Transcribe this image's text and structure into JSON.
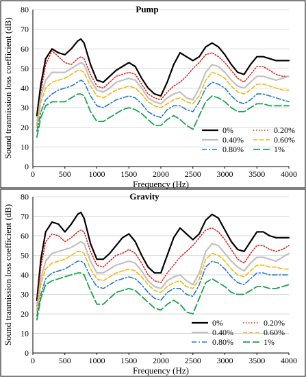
{
  "series_styles": [
    {
      "color": "#000000",
      "dash": "",
      "width": 2.2
    },
    {
      "color": "#e2231a",
      "dash": "1.5 2.5",
      "width": 1.6
    },
    {
      "color": "#c0c0c0",
      "dash": "",
      "width": 2.2
    },
    {
      "color": "#f2b705",
      "dash": "6 3",
      "width": 1.6
    },
    {
      "color": "#1f78c8",
      "dash": "7 3 2 3",
      "width": 1.6
    },
    {
      "color": "#16a34a",
      "dash": "10 4",
      "width": 1.8
    }
  ],
  "chart_data": [
    {
      "type": "line",
      "title": "Pump",
      "xlabel": "Frequency (Hz)",
      "ylabel": "Sound tranmission loss coefficient (dB)",
      "xlim": [
        0,
        4000
      ],
      "ylim": [
        0,
        80
      ],
      "xticks": [
        "0",
        "500",
        "1000",
        "1500",
        "2000",
        "2500",
        "3000",
        "3500",
        "4000"
      ],
      "yticks": [
        "0",
        "10",
        "20",
        "30",
        "40",
        "50",
        "60",
        "70",
        "80"
      ],
      "legend_position": "bottom-right",
      "x": [
        63,
        125,
        200,
        300,
        400,
        500,
        600,
        700,
        750,
        800,
        900,
        1000,
        1100,
        1200,
        1300,
        1400,
        1500,
        1600,
        1700,
        1800,
        1900,
        2000,
        2100,
        2200,
        2300,
        2400,
        2500,
        2600,
        2700,
        2800,
        2900,
        3000,
        3100,
        3200,
        3300,
        3400,
        3500,
        3600,
        3700,
        3800,
        3900,
        4000
      ],
      "series": [
        {
          "name": "0%",
          "values": [
            26,
            42,
            55,
            60,
            58,
            57,
            60,
            64,
            65,
            63,
            52,
            44,
            43,
            46,
            49,
            51,
            53,
            51,
            45,
            40,
            37,
            36,
            43,
            52,
            58,
            56,
            54,
            56,
            61,
            63,
            61,
            57,
            52,
            48,
            47,
            52,
            56,
            56,
            55,
            54,
            54,
            54
          ]
        },
        {
          "name": "0.20%",
          "values": [
            22,
            38,
            52,
            59,
            56,
            53,
            52,
            55,
            56,
            55,
            47,
            41,
            40,
            43,
            46,
            47,
            48,
            47,
            42,
            37,
            35,
            34,
            38,
            41,
            43,
            46,
            50,
            53,
            57,
            58,
            56,
            53,
            49,
            45,
            43,
            47,
            51,
            51,
            49,
            47,
            46,
            46
          ]
        },
        {
          "name": "0.40%",
          "values": [
            21,
            36,
            44,
            48,
            48,
            48,
            50,
            52,
            53,
            52,
            44,
            39,
            38,
            40,
            43,
            44,
            45,
            44,
            40,
            35,
            33,
            32,
            35,
            37,
            38,
            35,
            34,
            40,
            48,
            52,
            51,
            48,
            44,
            41,
            40,
            43,
            46,
            46,
            45,
            44,
            45,
            46
          ]
        },
        {
          "name": "0.60%",
          "values": [
            20,
            33,
            40,
            43,
            44,
            45,
            47,
            49,
            49,
            48,
            41,
            36,
            35,
            37,
            39,
            40,
            41,
            40,
            37,
            33,
            31,
            30,
            32,
            34,
            35,
            33,
            32,
            36,
            44,
            48,
            47,
            45,
            41,
            38,
            37,
            39,
            42,
            42,
            41,
            40,
            39,
            39
          ]
        },
        {
          "name": "0.80%",
          "values": [
            18,
            28,
            34,
            37,
            39,
            40,
            41,
            43,
            44,
            43,
            36,
            31,
            30,
            32,
            34,
            35,
            36,
            35,
            32,
            28,
            26,
            25,
            29,
            31,
            31,
            29,
            28,
            33,
            40,
            43,
            42,
            40,
            36,
            33,
            32,
            34,
            37,
            37,
            36,
            35,
            34,
            33
          ]
        },
        {
          "name": "1%",
          "values": [
            15,
            25,
            31,
            33,
            33,
            33,
            35,
            37,
            37,
            36,
            28,
            23,
            23,
            25,
            27,
            29,
            30,
            29,
            27,
            24,
            21,
            21,
            24,
            26,
            24,
            21,
            19,
            26,
            33,
            36,
            35,
            33,
            30,
            28,
            28,
            30,
            32,
            32,
            31,
            31,
            31,
            31
          ]
        }
      ]
    },
    {
      "type": "line",
      "title": "Gravity",
      "xlabel": "Frequency (Hz)",
      "ylabel": "Sound tranmission loss coefficient (dB)",
      "xlim": [
        0,
        4000
      ],
      "ylim": [
        0,
        80
      ],
      "xticks": [
        "0",
        "500",
        "1000",
        "1500",
        "2000",
        "2500",
        "3000",
        "3500",
        "4000"
      ],
      "yticks": [
        "0",
        "10",
        "20",
        "30",
        "40",
        "50",
        "60",
        "70",
        "80"
      ],
      "legend_position": "bottom-right",
      "x": [
        63,
        125,
        200,
        300,
        400,
        500,
        600,
        700,
        750,
        800,
        900,
        1000,
        1100,
        1200,
        1300,
        1400,
        1500,
        1600,
        1700,
        1800,
        1900,
        2000,
        2100,
        2200,
        2300,
        2400,
        2500,
        2600,
        2700,
        2800,
        2900,
        3000,
        3100,
        3200,
        3300,
        3400,
        3500,
        3600,
        3700,
        3800,
        3900,
        4000
      ],
      "series": [
        {
          "name": "0%",
          "values": [
            27,
            48,
            62,
            67,
            66,
            62,
            66,
            71,
            72,
            69,
            56,
            48,
            48,
            51,
            55,
            59,
            61,
            57,
            50,
            44,
            41,
            41,
            50,
            59,
            64,
            61,
            58,
            61,
            68,
            71,
            69,
            63,
            57,
            53,
            52,
            57,
            62,
            62,
            60,
            59,
            59,
            59
          ]
        },
        {
          "name": "0.20%",
          "values": [
            24,
            44,
            57,
            61,
            60,
            57,
            59,
            62,
            63,
            62,
            52,
            45,
            44,
            47,
            50,
            51,
            53,
            51,
            46,
            40,
            37,
            36,
            41,
            45,
            49,
            52,
            55,
            59,
            63,
            64,
            62,
            58,
            53,
            48,
            46,
            51,
            55,
            55,
            53,
            52,
            53,
            55
          ]
        },
        {
          "name": "0.40%",
          "values": [
            22,
            38,
            47,
            51,
            52,
            53,
            54,
            56,
            57,
            56,
            47,
            41,
            41,
            43,
            45,
            46,
            47,
            46,
            42,
            37,
            34,
            33,
            37,
            39,
            40,
            37,
            35,
            41,
            52,
            56,
            55,
            51,
            47,
            44,
            42,
            46,
            49,
            49,
            48,
            47,
            49,
            51
          ]
        },
        {
          "name": "0.60%",
          "values": [
            21,
            35,
            43,
            46,
            47,
            48,
            50,
            52,
            52,
            51,
            43,
            38,
            37,
            39,
            41,
            42,
            43,
            42,
            39,
            35,
            32,
            31,
            34,
            36,
            37,
            34,
            33,
            38,
            48,
            51,
            50,
            47,
            43,
            40,
            39,
            42,
            45,
            45,
            44,
            44,
            43,
            43
          ]
        },
        {
          "name": "0.80%",
          "values": [
            19,
            30,
            38,
            41,
            42,
            43,
            45,
            47,
            47,
            46,
            39,
            34,
            33,
            35,
            37,
            38,
            39,
            38,
            35,
            31,
            28,
            27,
            31,
            33,
            33,
            30,
            29,
            35,
            44,
            47,
            46,
            43,
            39,
            36,
            35,
            38,
            41,
            41,
            40,
            40,
            40,
            40
          ]
        },
        {
          "name": "1%",
          "values": [
            17,
            28,
            35,
            37,
            38,
            39,
            40,
            41,
            41,
            40,
            32,
            25,
            25,
            28,
            31,
            32,
            33,
            32,
            29,
            26,
            23,
            22,
            25,
            27,
            25,
            21,
            20,
            28,
            36,
            38,
            36,
            34,
            31,
            30,
            30,
            32,
            34,
            34,
            33,
            33,
            34,
            35
          ]
        }
      ]
    }
  ]
}
